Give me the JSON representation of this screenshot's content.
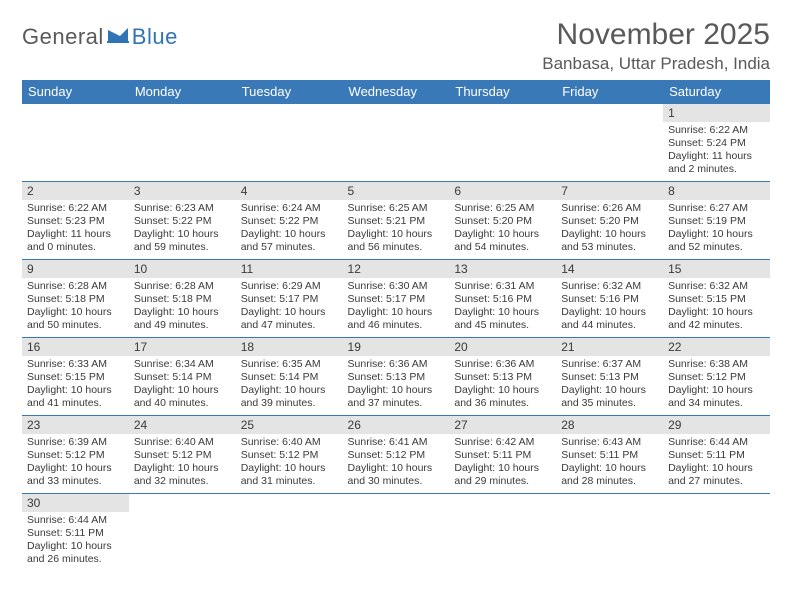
{
  "logo": {
    "general": "General",
    "blue": "Blue"
  },
  "title": "November 2025",
  "location": "Banbasa, Uttar Pradesh, India",
  "colors": {
    "header_bg": "#3a79b7",
    "header_text": "#ffffff",
    "daynum_bg": "#e4e4e4",
    "text": "#3a3a3a",
    "title_text": "#595959",
    "logo_gray": "#5a5a5a",
    "logo_blue": "#2f74b5",
    "border": "#3a79b7"
  },
  "weekdays": [
    "Sunday",
    "Monday",
    "Tuesday",
    "Wednesday",
    "Thursday",
    "Friday",
    "Saturday"
  ],
  "weeks": [
    [
      null,
      null,
      null,
      null,
      null,
      null,
      {
        "d": "1",
        "sr": "Sunrise: 6:22 AM",
        "ss": "Sunset: 5:24 PM",
        "dl": "Daylight: 11 hours and 2 minutes."
      }
    ],
    [
      {
        "d": "2",
        "sr": "Sunrise: 6:22 AM",
        "ss": "Sunset: 5:23 PM",
        "dl": "Daylight: 11 hours and 0 minutes."
      },
      {
        "d": "3",
        "sr": "Sunrise: 6:23 AM",
        "ss": "Sunset: 5:22 PM",
        "dl": "Daylight: 10 hours and 59 minutes."
      },
      {
        "d": "4",
        "sr": "Sunrise: 6:24 AM",
        "ss": "Sunset: 5:22 PM",
        "dl": "Daylight: 10 hours and 57 minutes."
      },
      {
        "d": "5",
        "sr": "Sunrise: 6:25 AM",
        "ss": "Sunset: 5:21 PM",
        "dl": "Daylight: 10 hours and 56 minutes."
      },
      {
        "d": "6",
        "sr": "Sunrise: 6:25 AM",
        "ss": "Sunset: 5:20 PM",
        "dl": "Daylight: 10 hours and 54 minutes."
      },
      {
        "d": "7",
        "sr": "Sunrise: 6:26 AM",
        "ss": "Sunset: 5:20 PM",
        "dl": "Daylight: 10 hours and 53 minutes."
      },
      {
        "d": "8",
        "sr": "Sunrise: 6:27 AM",
        "ss": "Sunset: 5:19 PM",
        "dl": "Daylight: 10 hours and 52 minutes."
      }
    ],
    [
      {
        "d": "9",
        "sr": "Sunrise: 6:28 AM",
        "ss": "Sunset: 5:18 PM",
        "dl": "Daylight: 10 hours and 50 minutes."
      },
      {
        "d": "10",
        "sr": "Sunrise: 6:28 AM",
        "ss": "Sunset: 5:18 PM",
        "dl": "Daylight: 10 hours and 49 minutes."
      },
      {
        "d": "11",
        "sr": "Sunrise: 6:29 AM",
        "ss": "Sunset: 5:17 PM",
        "dl": "Daylight: 10 hours and 47 minutes."
      },
      {
        "d": "12",
        "sr": "Sunrise: 6:30 AM",
        "ss": "Sunset: 5:17 PM",
        "dl": "Daylight: 10 hours and 46 minutes."
      },
      {
        "d": "13",
        "sr": "Sunrise: 6:31 AM",
        "ss": "Sunset: 5:16 PM",
        "dl": "Daylight: 10 hours and 45 minutes."
      },
      {
        "d": "14",
        "sr": "Sunrise: 6:32 AM",
        "ss": "Sunset: 5:16 PM",
        "dl": "Daylight: 10 hours and 44 minutes."
      },
      {
        "d": "15",
        "sr": "Sunrise: 6:32 AM",
        "ss": "Sunset: 5:15 PM",
        "dl": "Daylight: 10 hours and 42 minutes."
      }
    ],
    [
      {
        "d": "16",
        "sr": "Sunrise: 6:33 AM",
        "ss": "Sunset: 5:15 PM",
        "dl": "Daylight: 10 hours and 41 minutes."
      },
      {
        "d": "17",
        "sr": "Sunrise: 6:34 AM",
        "ss": "Sunset: 5:14 PM",
        "dl": "Daylight: 10 hours and 40 minutes."
      },
      {
        "d": "18",
        "sr": "Sunrise: 6:35 AM",
        "ss": "Sunset: 5:14 PM",
        "dl": "Daylight: 10 hours and 39 minutes."
      },
      {
        "d": "19",
        "sr": "Sunrise: 6:36 AM",
        "ss": "Sunset: 5:13 PM",
        "dl": "Daylight: 10 hours and 37 minutes."
      },
      {
        "d": "20",
        "sr": "Sunrise: 6:36 AM",
        "ss": "Sunset: 5:13 PM",
        "dl": "Daylight: 10 hours and 36 minutes."
      },
      {
        "d": "21",
        "sr": "Sunrise: 6:37 AM",
        "ss": "Sunset: 5:13 PM",
        "dl": "Daylight: 10 hours and 35 minutes."
      },
      {
        "d": "22",
        "sr": "Sunrise: 6:38 AM",
        "ss": "Sunset: 5:12 PM",
        "dl": "Daylight: 10 hours and 34 minutes."
      }
    ],
    [
      {
        "d": "23",
        "sr": "Sunrise: 6:39 AM",
        "ss": "Sunset: 5:12 PM",
        "dl": "Daylight: 10 hours and 33 minutes."
      },
      {
        "d": "24",
        "sr": "Sunrise: 6:40 AM",
        "ss": "Sunset: 5:12 PM",
        "dl": "Daylight: 10 hours and 32 minutes."
      },
      {
        "d": "25",
        "sr": "Sunrise: 6:40 AM",
        "ss": "Sunset: 5:12 PM",
        "dl": "Daylight: 10 hours and 31 minutes."
      },
      {
        "d": "26",
        "sr": "Sunrise: 6:41 AM",
        "ss": "Sunset: 5:12 PM",
        "dl": "Daylight: 10 hours and 30 minutes."
      },
      {
        "d": "27",
        "sr": "Sunrise: 6:42 AM",
        "ss": "Sunset: 5:11 PM",
        "dl": "Daylight: 10 hours and 29 minutes."
      },
      {
        "d": "28",
        "sr": "Sunrise: 6:43 AM",
        "ss": "Sunset: 5:11 PM",
        "dl": "Daylight: 10 hours and 28 minutes."
      },
      {
        "d": "29",
        "sr": "Sunrise: 6:44 AM",
        "ss": "Sunset: 5:11 PM",
        "dl": "Daylight: 10 hours and 27 minutes."
      }
    ],
    [
      {
        "d": "30",
        "sr": "Sunrise: 6:44 AM",
        "ss": "Sunset: 5:11 PM",
        "dl": "Daylight: 10 hours and 26 minutes."
      },
      null,
      null,
      null,
      null,
      null,
      null
    ]
  ]
}
